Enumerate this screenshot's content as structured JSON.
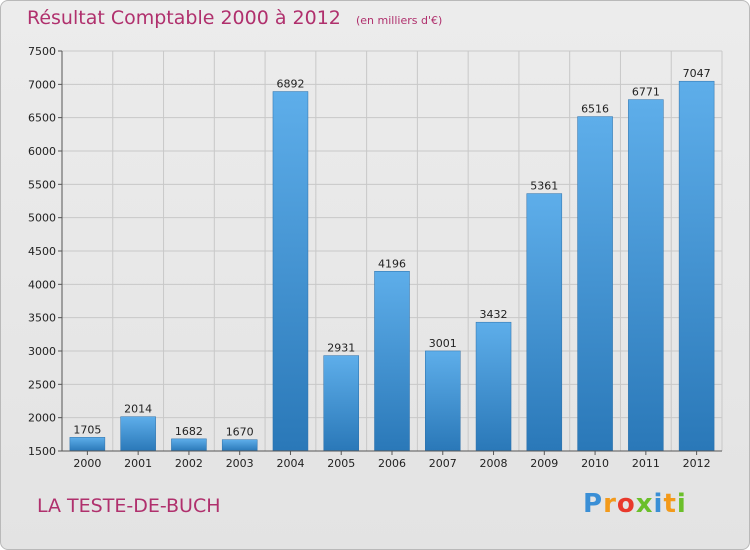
{
  "header": {
    "title": "Résultat Comptable 2000 à 2012",
    "subtitle": "(en milliers d'€)"
  },
  "footer": {
    "city": "LA TESTE-DE-BUCH",
    "logo": [
      "P",
      "r",
      "o",
      "x",
      "i",
      "t",
      "i"
    ]
  },
  "colors": {
    "title": "#b0306d",
    "bar_top": "#5eaeea",
    "bar_bottom": "#2a78b8",
    "logo": [
      "#3a8fd6",
      "#f39a1a",
      "#e9392c",
      "#6bbf2a",
      "#3a8fd6",
      "#f39a1a",
      "#6bbf2a"
    ]
  },
  "chart_data": {
    "type": "bar",
    "title": "Résultat Comptable 2000 à 2012",
    "subtitle": "(en milliers d'€)",
    "categories": [
      "2000",
      "2001",
      "2002",
      "2003",
      "2004",
      "2005",
      "2006",
      "2007",
      "2008",
      "2009",
      "2010",
      "2011",
      "2012"
    ],
    "values": [
      1705,
      2014,
      1682,
      1670,
      6892,
      2931,
      4196,
      3001,
      3432,
      5361,
      6516,
      6771,
      7047
    ],
    "ylim": [
      1500,
      7500
    ],
    "yticks": [
      1500,
      2000,
      2500,
      3000,
      3500,
      4000,
      4500,
      5000,
      5500,
      6000,
      6500,
      7000,
      7500
    ],
    "grid": true,
    "legend": "none"
  }
}
